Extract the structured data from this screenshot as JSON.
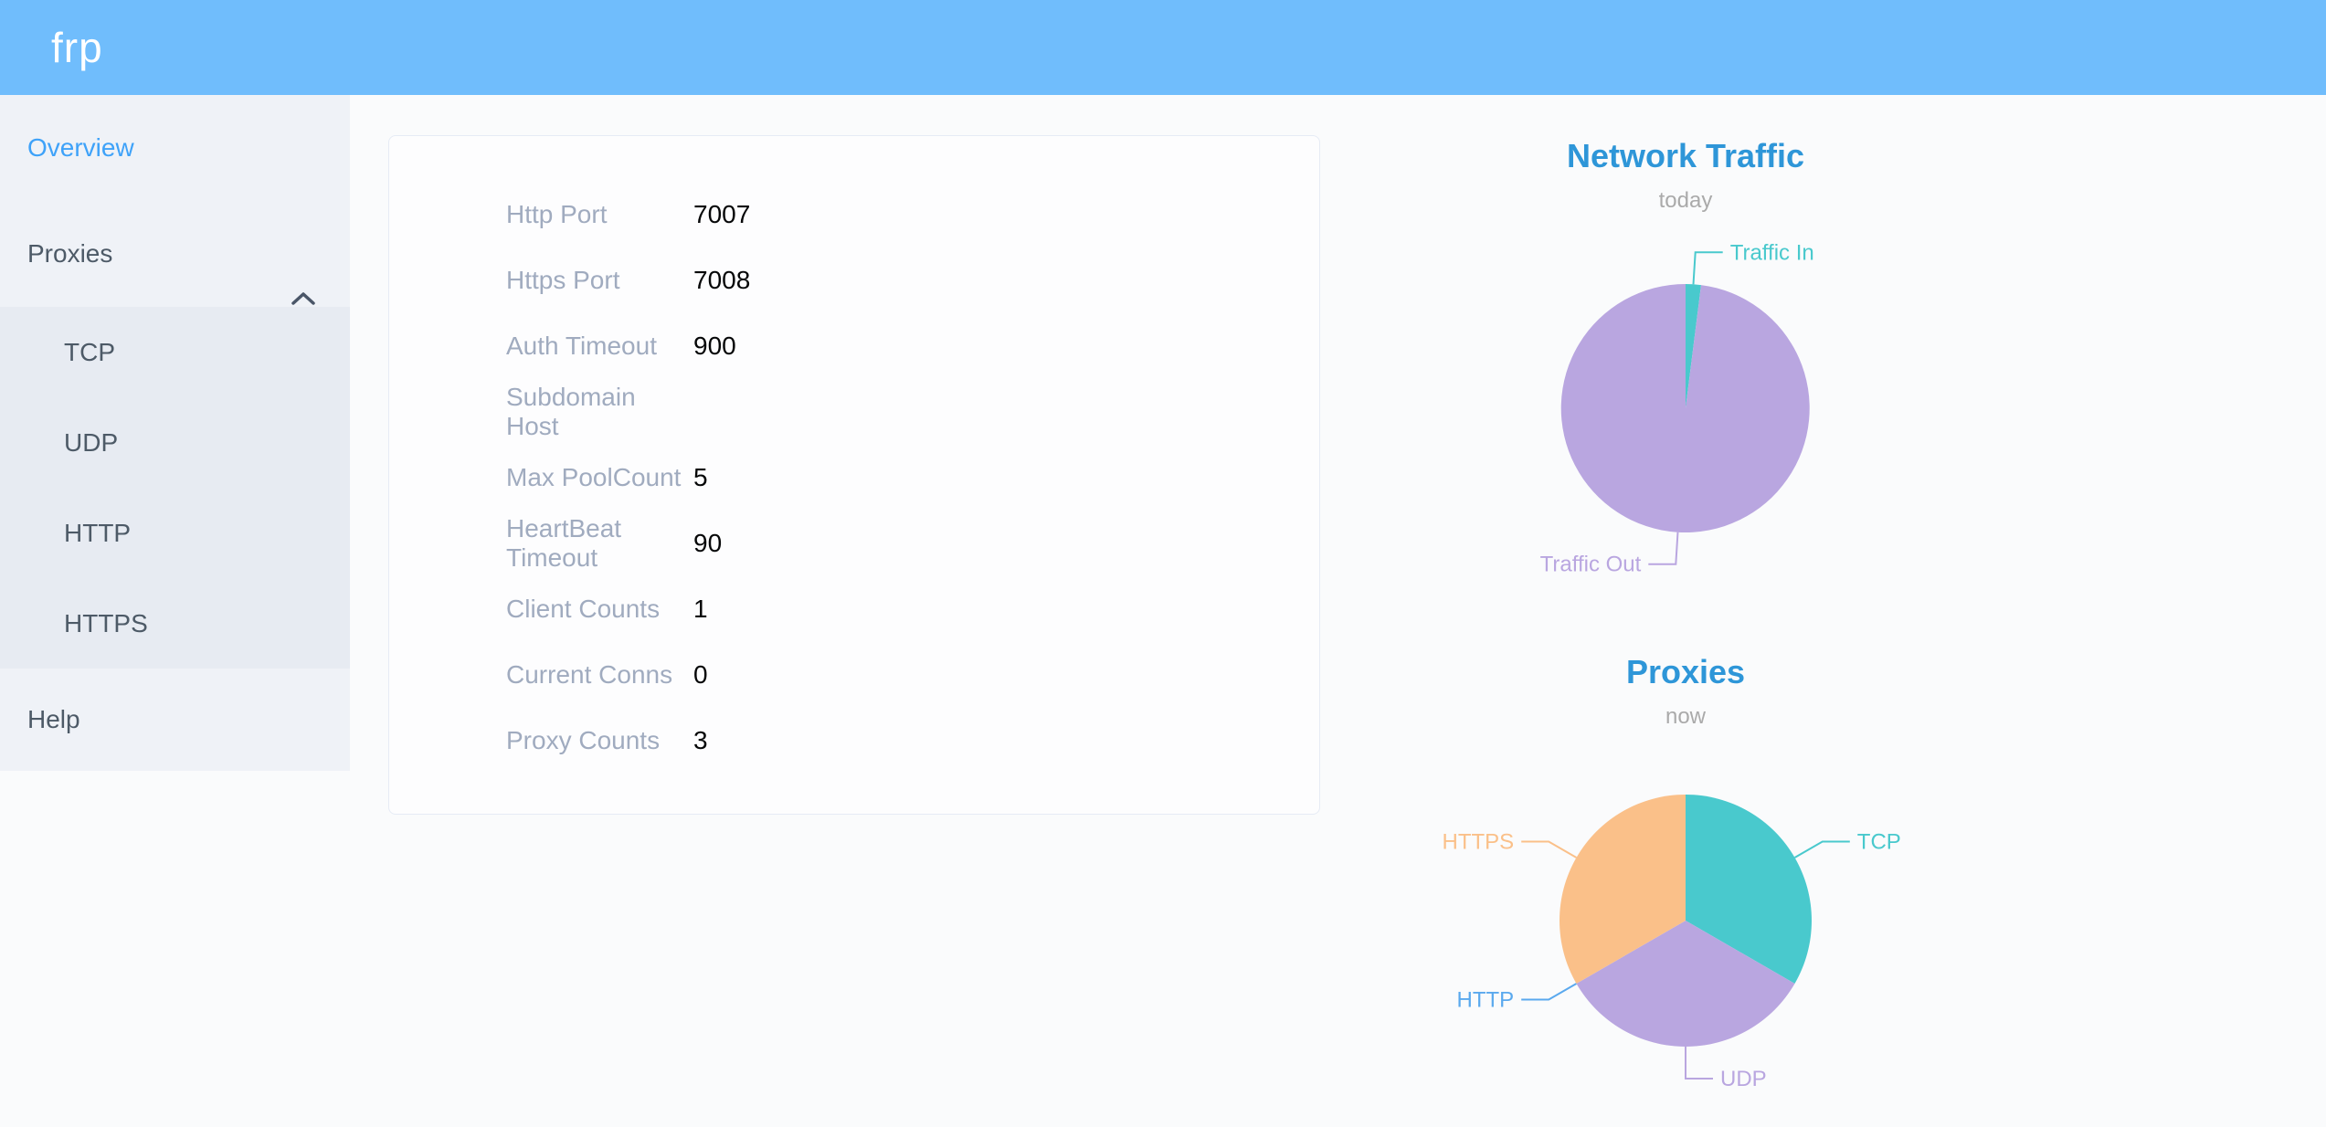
{
  "header": {
    "logo": "frp"
  },
  "sidebar": {
    "items": [
      {
        "label": "Overview",
        "active": true
      },
      {
        "label": "Proxies",
        "expanded": true,
        "children": [
          "TCP",
          "UDP",
          "HTTP",
          "HTTPS"
        ]
      },
      {
        "label": "Help"
      }
    ]
  },
  "overview_card": {
    "rows": [
      {
        "label": "Http Port",
        "value": "7007"
      },
      {
        "label": "Https Port",
        "value": "7008"
      },
      {
        "label": "Auth Timeout",
        "value": "900"
      },
      {
        "label": "Subdomain Host",
        "value": ""
      },
      {
        "label": "Max PoolCount",
        "value": "5"
      },
      {
        "label": "HeartBeat Timeout",
        "value": "90"
      },
      {
        "label": "Client Counts",
        "value": "1"
      },
      {
        "label": "Current Conns",
        "value": "0"
      },
      {
        "label": "Proxy Counts",
        "value": "3"
      }
    ]
  },
  "chart_data": [
    {
      "type": "pie",
      "title": "Network Traffic",
      "subtitle": "today",
      "labels": [
        "Traffic In",
        "Traffic Out"
      ],
      "values": [
        2,
        98
      ],
      "colors": [
        "#49c9cd",
        "#b9a6e0"
      ],
      "label_position": "outside",
      "legend_position": "none"
    },
    {
      "type": "pie",
      "title": "Proxies",
      "subtitle": "now",
      "labels": [
        "TCP",
        "UDP",
        "HTTP",
        "HTTPS"
      ],
      "values": [
        1,
        1,
        0,
        1
      ],
      "colors": [
        "#49c9cd",
        "#b9a6e0",
        "#5aa9ee",
        "#fac089"
      ],
      "label_position": "outside",
      "legend_position": "none"
    }
  ],
  "theme": {
    "header_bg": "#70bdfc",
    "sidebar_bg": "#eff2f7",
    "submenu_bg": "#e7ebf2",
    "active_item_color": "#3ea2f9",
    "chart_title_color": "#2e96d8"
  }
}
